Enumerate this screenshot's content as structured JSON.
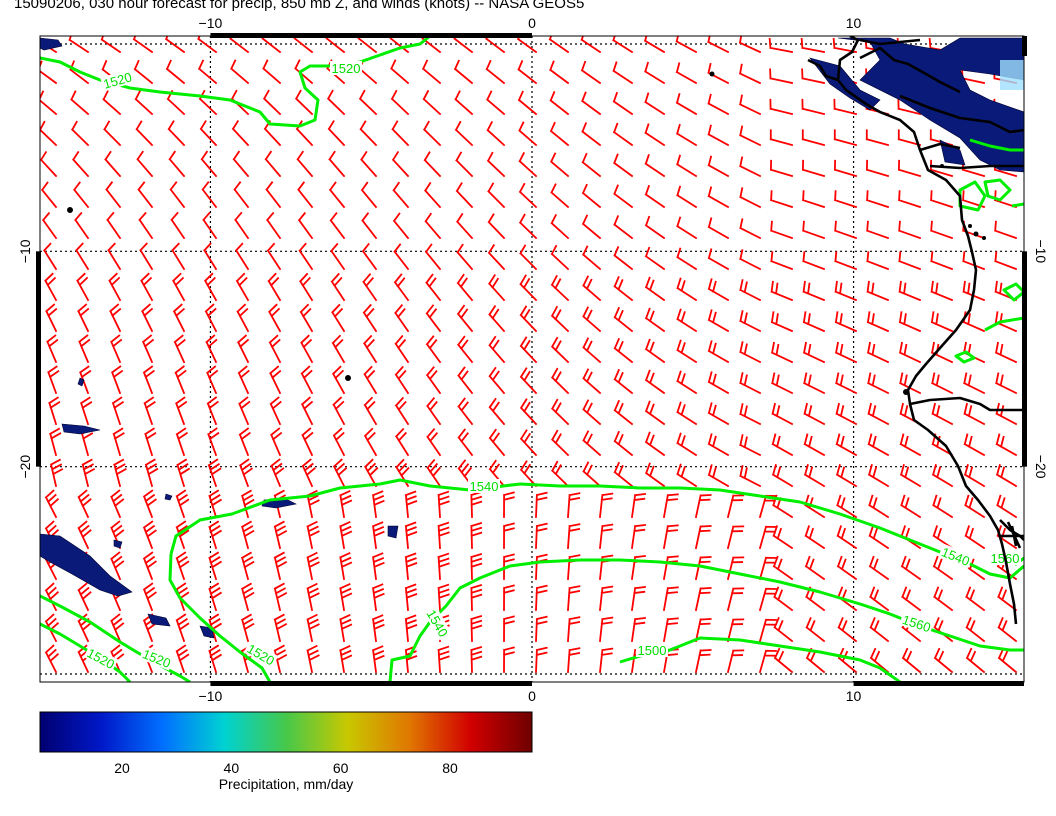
{
  "title": "15090206, 030 hour forecast for precip, 850 mb Z, and winds (knots) -- NASA GEOS5",
  "axes": {
    "lon_ticks": [
      "−10",
      "0",
      "10"
    ],
    "lat_ticks": [
      "−10",
      "−20"
    ]
  },
  "contour_labels": [
    "1520",
    "1520",
    "1540",
    "1540",
    "1560",
    "1520",
    "1520",
    "1540",
    "1500",
    "1520",
    "1560"
  ],
  "colorbar": {
    "label": "Precipitation, mm/day",
    "ticks": [
      "20",
      "40",
      "60",
      "80"
    ],
    "range": [
      5,
      95
    ],
    "stops": [
      "#000070",
      "#0018c8",
      "#0070ff",
      "#00d2d2",
      "#46c84b",
      "#c8c800",
      "#e07800",
      "#d20000",
      "#6e0000"
    ]
  },
  "colors": {
    "wind_barb": "#ff0000",
    "contour": "#00ee00",
    "coast": "#000000",
    "precip_fill": "#0a1a78"
  },
  "map_data": {
    "lon_range": [
      -15.3,
      15.3
    ],
    "lat_range": [
      -30,
      0
    ],
    "grid_lines": {
      "lon": [
        -10,
        0,
        10
      ],
      "lat": [
        -10,
        -20
      ]
    }
  }
}
